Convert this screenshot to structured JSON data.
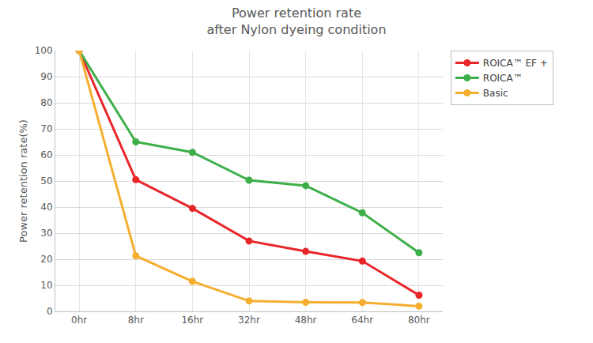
{
  "chart_data": {
    "type": "line",
    "title": "Power retention rate\nafter Nylon dyeing condition",
    "y_label": "Power retention rate(%)",
    "categories": [
      "0hr",
      "8hr",
      "16hr",
      "32hr",
      "48hr",
      "64hr",
      "80hr"
    ],
    "series": [
      {
        "name": "ROICA™ EF +",
        "color": "#e8262a",
        "values": [
          100,
          50.5,
          39.5,
          27,
          23,
          19.3,
          6.2
        ]
      },
      {
        "name": "ROICA™",
        "color": "#3daf49",
        "values": [
          100,
          65,
          61,
          50.3,
          48.2,
          37.8,
          22.5
        ]
      },
      {
        "name": "Basic",
        "color": "#f5ae2f",
        "values": [
          100,
          21.3,
          11.5,
          4,
          3.5,
          3.4,
          2
        ]
      }
    ],
    "ylim": [
      0,
      100
    ],
    "yticks": [
      0,
      10,
      20,
      30,
      40,
      50,
      60,
      70,
      80,
      90,
      100
    ],
    "grid": true,
    "legend": "top right",
    "marker": "circle",
    "line_style": "solid"
  }
}
